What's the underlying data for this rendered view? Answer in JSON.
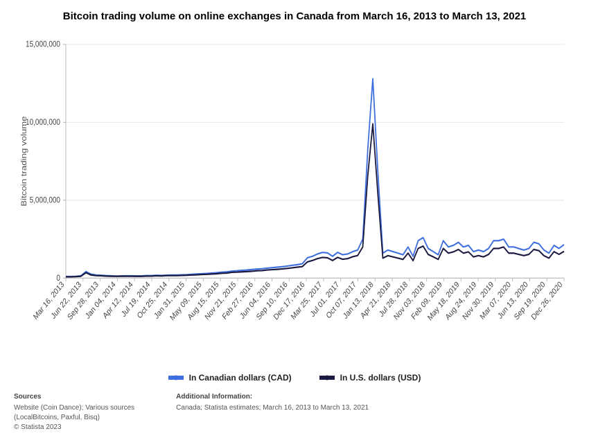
{
  "title": "Bitcoin trading volume on online exchanges in Canada from March 16, 2013 to March 13, 2021",
  "chart": {
    "type": "line",
    "ylabel": "Bitcoin trading volume",
    "ylim": [
      0,
      15000000
    ],
    "ytick_step": 5000000,
    "yticks": [
      0,
      5000000,
      10000000,
      15000000
    ],
    "ytick_labels": [
      "0",
      "5,000,000",
      "10,000,000",
      "15,000,000"
    ],
    "xlabels": [
      "Mar 16, 2013",
      "Jun 22, 2013",
      "Sep 28, 2013",
      "Jan 04, 2014",
      "Apr 12, 2014",
      "Jul 19, 2014",
      "Oct 25, 2014",
      "Jan 31, 2015",
      "May 09, 2015",
      "Aug 15, 2015",
      "Nov 21, 2015",
      "Feb 27, 2016",
      "Jun 04, 2016",
      "Sep 10, 2016",
      "Dec 17, 2016",
      "Mar 25, 2017",
      "Jul 01, 2017",
      "Oct 07, 2017",
      "Jan 13, 2018",
      "Apr 21, 2018",
      "Jul 28, 2018",
      "Nov 03, 2018",
      "Feb 09, 2019",
      "May 18, 2019",
      "Aug 24, 2019",
      "Nov 30, 2019",
      "Mar 07, 2020",
      "Jun 13, 2020",
      "Sep 19, 2020",
      "Dec 26, 2020"
    ],
    "series": [
      {
        "name": "In Canadian dollars (CAD)",
        "color": "#3f6fde",
        "line_width": 1.8,
        "values": [
          100000,
          100000,
          110000,
          150000,
          420000,
          250000,
          200000,
          180000,
          160000,
          150000,
          130000,
          140000,
          150000,
          150000,
          140000,
          140000,
          160000,
          160000,
          180000,
          170000,
          190000,
          200000,
          200000,
          210000,
          220000,
          240000,
          260000,
          280000,
          300000,
          320000,
          350000,
          380000,
          400000,
          450000,
          470000,
          500000,
          520000,
          550000,
          580000,
          600000,
          640000,
          670000,
          700000,
          730000,
          770000,
          820000,
          860000,
          920000,
          1300000,
          1400000,
          1550000,
          1650000,
          1620000,
          1400000,
          1650000,
          1500000,
          1550000,
          1700000,
          1800000,
          2500000,
          8300000,
          12800000,
          6800000,
          1600000,
          1800000,
          1700000,
          1600000,
          1500000,
          2000000,
          1400000,
          2400000,
          2600000,
          1900000,
          1700000,
          1500000,
          2400000,
          2000000,
          2100000,
          2300000,
          2000000,
          2100000,
          1700000,
          1800000,
          1700000,
          1900000,
          2400000,
          2400000,
          2500000,
          2000000,
          2000000,
          1900000,
          1800000,
          1900000,
          2300000,
          2200000,
          1800000,
          1600000,
          2100000,
          1900000,
          2150000
        ]
      },
      {
        "name": "In U.S. dollars (USD)",
        "color": "#1a1a40",
        "line_width": 1.8,
        "values": [
          80000,
          80000,
          90000,
          120000,
          350000,
          200000,
          160000,
          150000,
          130000,
          120000,
          110000,
          120000,
          120000,
          120000,
          110000,
          110000,
          130000,
          130000,
          150000,
          140000,
          160000,
          160000,
          160000,
          170000,
          180000,
          200000,
          210000,
          230000,
          240000,
          260000,
          280000,
          310000,
          320000,
          370000,
          380000,
          400000,
          420000,
          440000,
          470000,
          480000,
          520000,
          540000,
          560000,
          590000,
          620000,
          660000,
          700000,
          740000,
          1040000,
          1130000,
          1250000,
          1330000,
          1300000,
          1130000,
          1330000,
          1210000,
          1250000,
          1370000,
          1450000,
          2000000,
          6600000,
          9900000,
          5400000,
          1280000,
          1440000,
          1360000,
          1280000,
          1200000,
          1600000,
          1120000,
          1900000,
          2050000,
          1520000,
          1360000,
          1200000,
          1900000,
          1600000,
          1680000,
          1840000,
          1600000,
          1680000,
          1360000,
          1440000,
          1360000,
          1520000,
          1900000,
          1900000,
          2000000,
          1600000,
          1600000,
          1520000,
          1440000,
          1520000,
          1840000,
          1760000,
          1440000,
          1280000,
          1700000,
          1520000,
          1720000
        ]
      }
    ],
    "background_color": "#ffffff",
    "grid_color": "#eaeaea",
    "axis_color": "#bcbcbc",
    "label_fontsize": 10,
    "title_fontsize": 15
  },
  "legend": {
    "items": [
      {
        "label": "In Canadian dollars (CAD)",
        "color": "#3f6fde"
      },
      {
        "label": "In U.S. dollars (USD)",
        "color": "#1a1a40"
      }
    ]
  },
  "footer": {
    "sources_heading": "Sources",
    "sources_line1": "Website (Coin Dance); Various sources",
    "sources_line2": "(LocalBitcoins, Paxful, Bisq)",
    "copyright": "© Statista 2023",
    "addl_heading": "Additional Information:",
    "addl_text": "Canada; Statista estimates; March 16, 2013 to March 13, 2021"
  }
}
